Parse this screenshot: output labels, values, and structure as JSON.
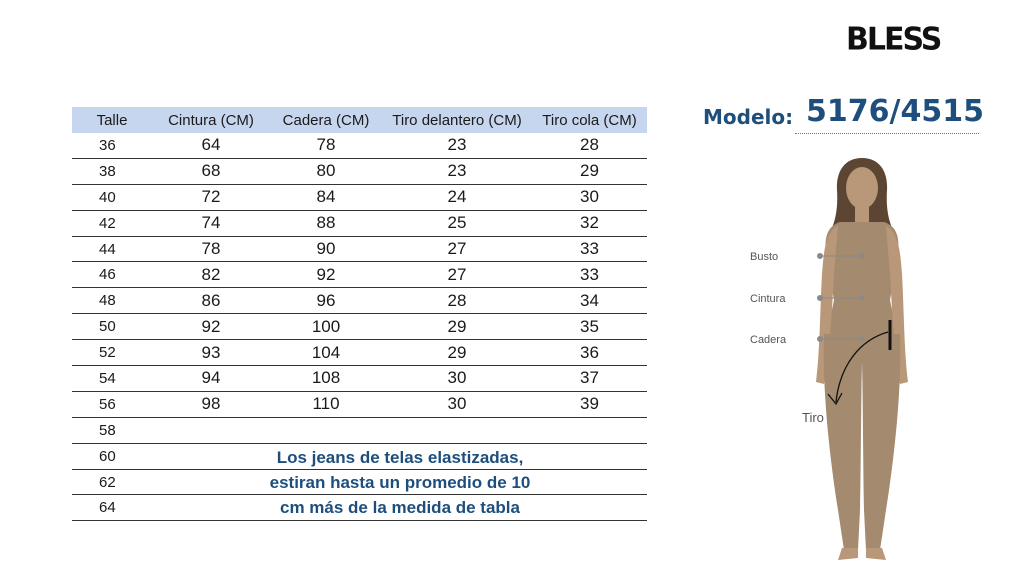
{
  "brand": "BLESS",
  "table": {
    "headers": [
      "Talle",
      "Cintura (CM)",
      "Cadera (CM)",
      "Tiro delantero (CM)",
      "Tiro cola (CM)"
    ],
    "rows": [
      {
        "talle": "36",
        "cintura": "64",
        "cadera": "78",
        "tiro_delantero": "23",
        "tiro_cola": "28"
      },
      {
        "talle": "38",
        "cintura": "68",
        "cadera": "80",
        "tiro_delantero": "23",
        "tiro_cola": "29"
      },
      {
        "talle": "40",
        "cintura": "72",
        "cadera": "84",
        "tiro_delantero": "24",
        "tiro_cola": "30"
      },
      {
        "talle": "42",
        "cintura": "74",
        "cadera": "88",
        "tiro_delantero": "25",
        "tiro_cola": "32"
      },
      {
        "talle": "44",
        "cintura": "78",
        "cadera": "90",
        "tiro_delantero": "27",
        "tiro_cola": "33"
      },
      {
        "talle": "46",
        "cintura": "82",
        "cadera": "92",
        "tiro_delantero": "27",
        "tiro_cola": "33"
      },
      {
        "talle": "48",
        "cintura": "86",
        "cadera": "96",
        "tiro_delantero": "28",
        "tiro_cola": "34"
      },
      {
        "talle": "50",
        "cintura": "92",
        "cadera": "100",
        "tiro_delantero": "29",
        "tiro_cola": "35"
      },
      {
        "talle": "52",
        "cintura": "93",
        "cadera": "104",
        "tiro_delantero": "29",
        "tiro_cola": "36"
      },
      {
        "talle": "54",
        "cintura": "94",
        "cadera": "108",
        "tiro_delantero": "30",
        "tiro_cola": "37"
      },
      {
        "talle": "56",
        "cintura": "98",
        "cadera": "110",
        "tiro_delantero": "30",
        "tiro_cola": "39"
      },
      {
        "talle": "58",
        "cintura": "",
        "cadera": "",
        "tiro_delantero": "",
        "tiro_cola": ""
      },
      {
        "talle": "60",
        "cintura": "",
        "cadera": "",
        "tiro_delantero": "",
        "tiro_cola": ""
      },
      {
        "talle": "62",
        "cintura": "",
        "cadera": "",
        "tiro_delantero": "",
        "tiro_cola": ""
      },
      {
        "talle": "64",
        "cintura": "",
        "cadera": "",
        "tiro_delantero": "",
        "tiro_cola": ""
      }
    ]
  },
  "note": {
    "line1": "Los jeans de telas elastizadas,",
    "line2": "estiran hasta un promedio de 10",
    "line3": "cm más de la medida de tabla"
  },
  "modelo": {
    "label": "Modelo:",
    "code": "5176/4515"
  },
  "figure": {
    "labels": {
      "busto": "Busto",
      "cintura": "Cintura",
      "cadera": "Cadera",
      "tiro": "Tiro"
    }
  },
  "colors": {
    "accent_blue": "#1e4f7c",
    "header_bg": "#c6d6ef",
    "figure_skin": "#a48a6e"
  }
}
